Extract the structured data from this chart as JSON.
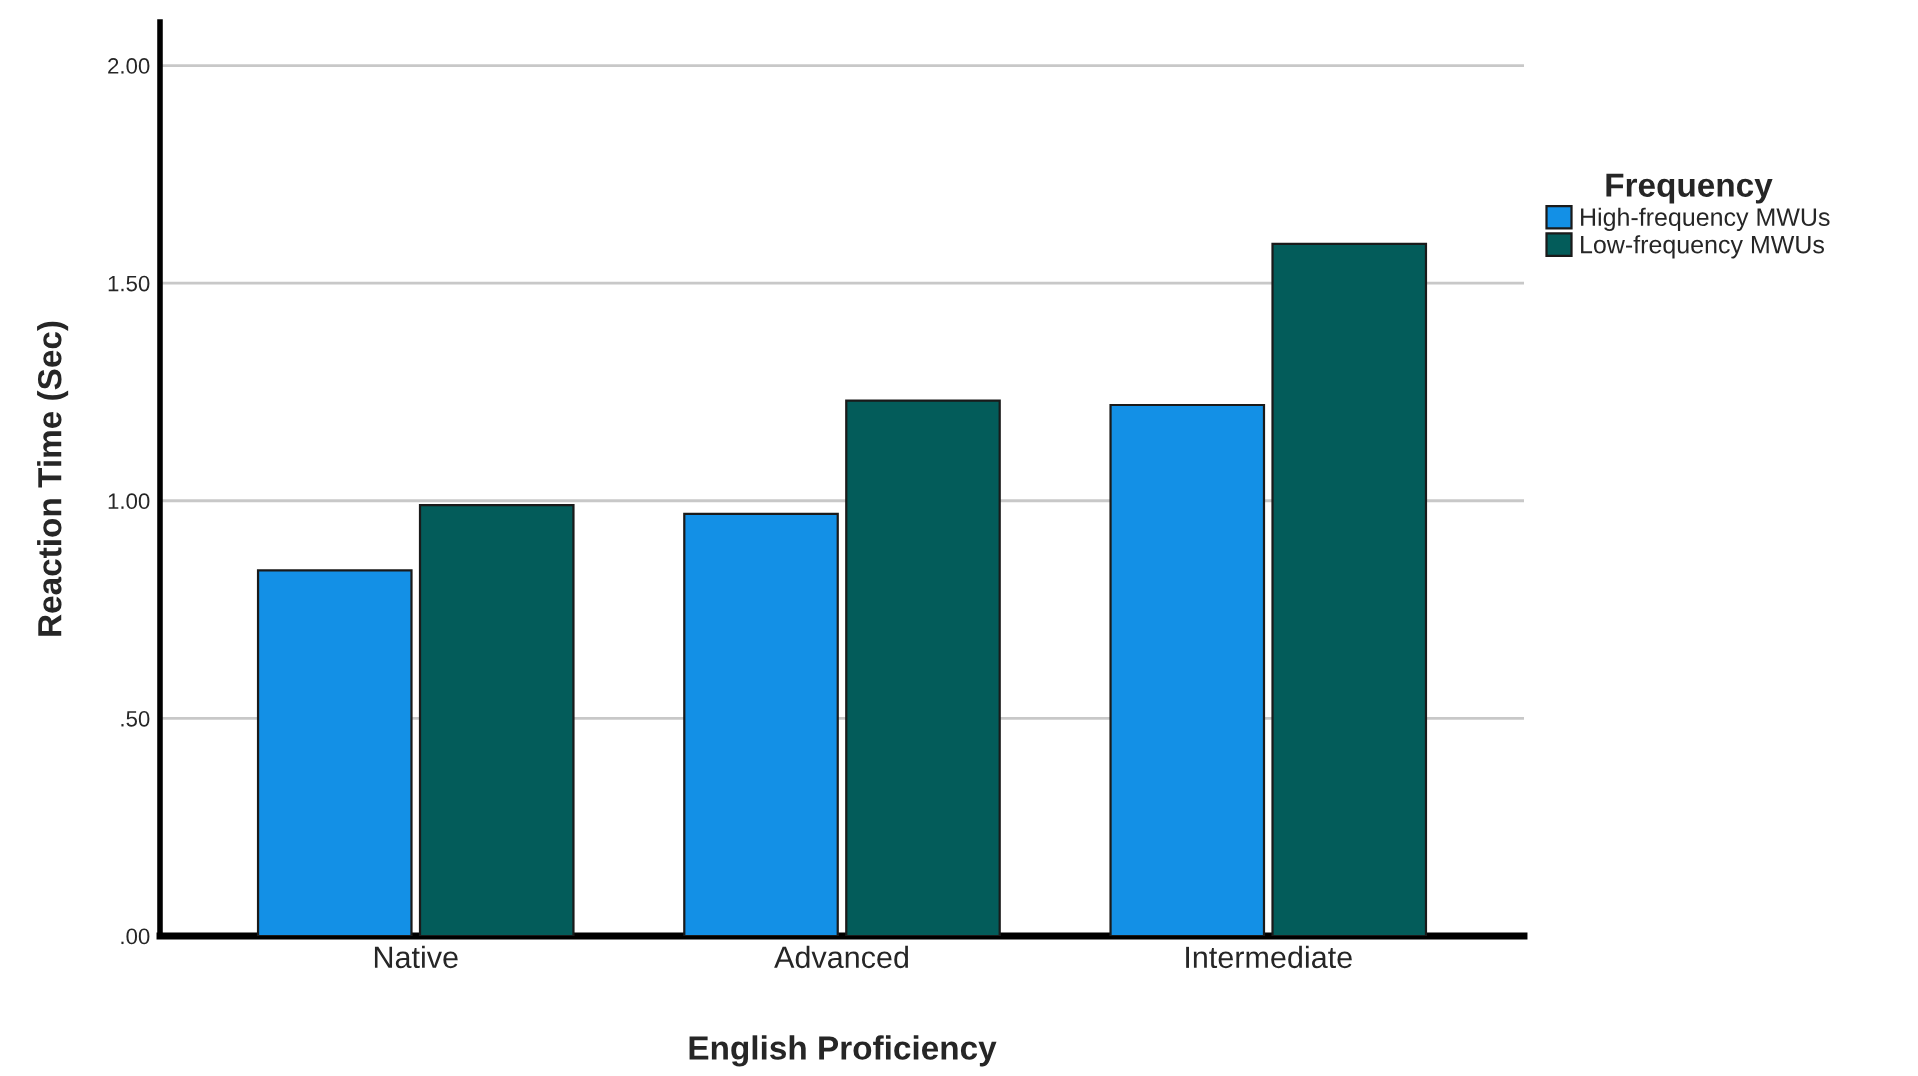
{
  "chart_data": {
    "type": "bar",
    "xlabel": "English Proficiency",
    "ylabel": "Reaction Time (Sec)",
    "legend_title": "Frequency",
    "categories": [
      "Native",
      "Advanced",
      "Intermediate"
    ],
    "series": [
      {
        "name": "High-frequency MWUs",
        "color": "#1390e6",
        "values": [
          0.84,
          0.97,
          1.22
        ]
      },
      {
        "name": "Low-frequency MWUs",
        "color": "#035c5a",
        "values": [
          0.99,
          1.23,
          1.59
        ]
      }
    ],
    "ylim": [
      0,
      2.1
    ],
    "yticks": [
      {
        "value": 0,
        "label": ".00"
      },
      {
        "value": 0.5,
        "label": ".50"
      },
      {
        "value": 1.0,
        "label": "1.00"
      },
      {
        "value": 1.5,
        "label": "1.50"
      },
      {
        "value": 2.0,
        "label": "2.00"
      }
    ],
    "grid": "y",
    "legend": "right"
  }
}
